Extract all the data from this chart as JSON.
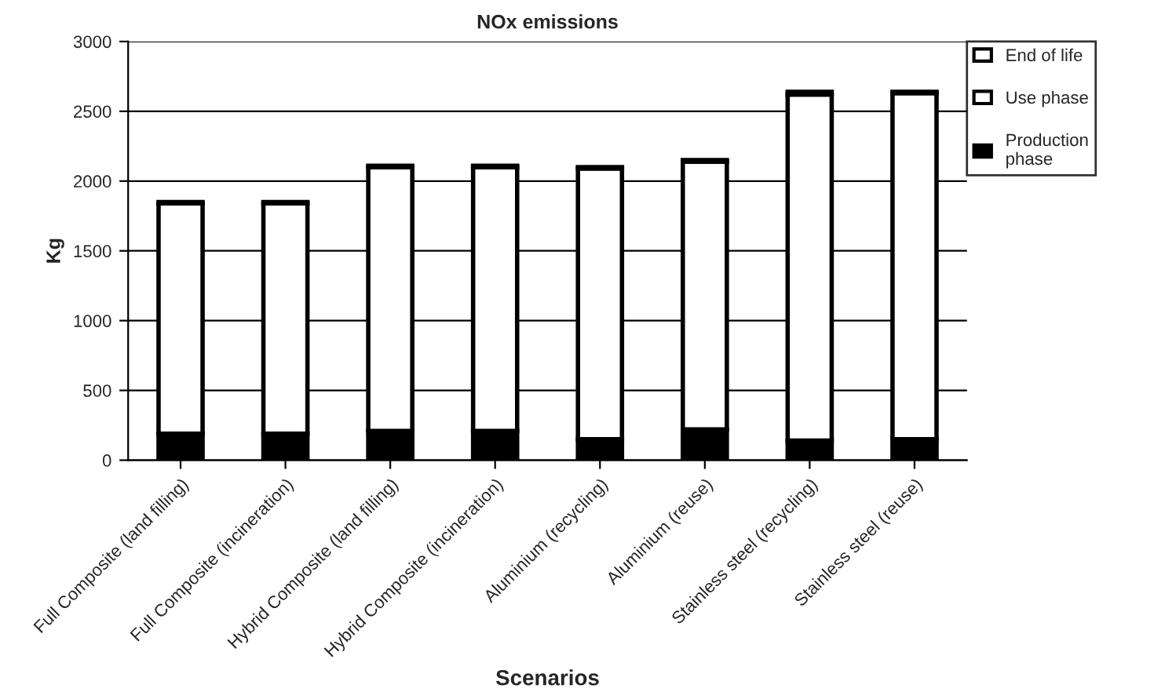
{
  "chart_data": {
    "type": "bar",
    "stacked": true,
    "title": "NOx emissions",
    "xlabel": "Scenarios",
    "ylabel": "Kg",
    "categories": [
      "Full Composite (land filling)",
      "Full Composite (incineration)",
      "Hybrid Composite (land filling)",
      "Hybrid Composite (incineration)",
      "Aluminium (recycling)",
      "Aluminium (reuse)",
      "Stainless steel (recycling)",
      "Stainless steel (reuse)"
    ],
    "series": [
      {
        "name": "Production phase",
        "color": "#000000",
        "values": [
          190,
          190,
          210,
          210,
          150,
          220,
          140,
          150
        ]
      },
      {
        "name": "Use phase",
        "color": "#ffffff",
        "values": [
          1650,
          1650,
          1890,
          1890,
          1940,
          1920,
          2480,
          2480
        ]
      },
      {
        "name": "End of life",
        "color": "#ffffff",
        "values": [
          10,
          10,
          10,
          10,
          10,
          10,
          20,
          10
        ]
      }
    ],
    "ylim": [
      0,
      3000
    ],
    "yticks": [
      0,
      500,
      1000,
      1500,
      2000,
      2500,
      3000
    ],
    "grid": "y",
    "legend": "right"
  }
}
